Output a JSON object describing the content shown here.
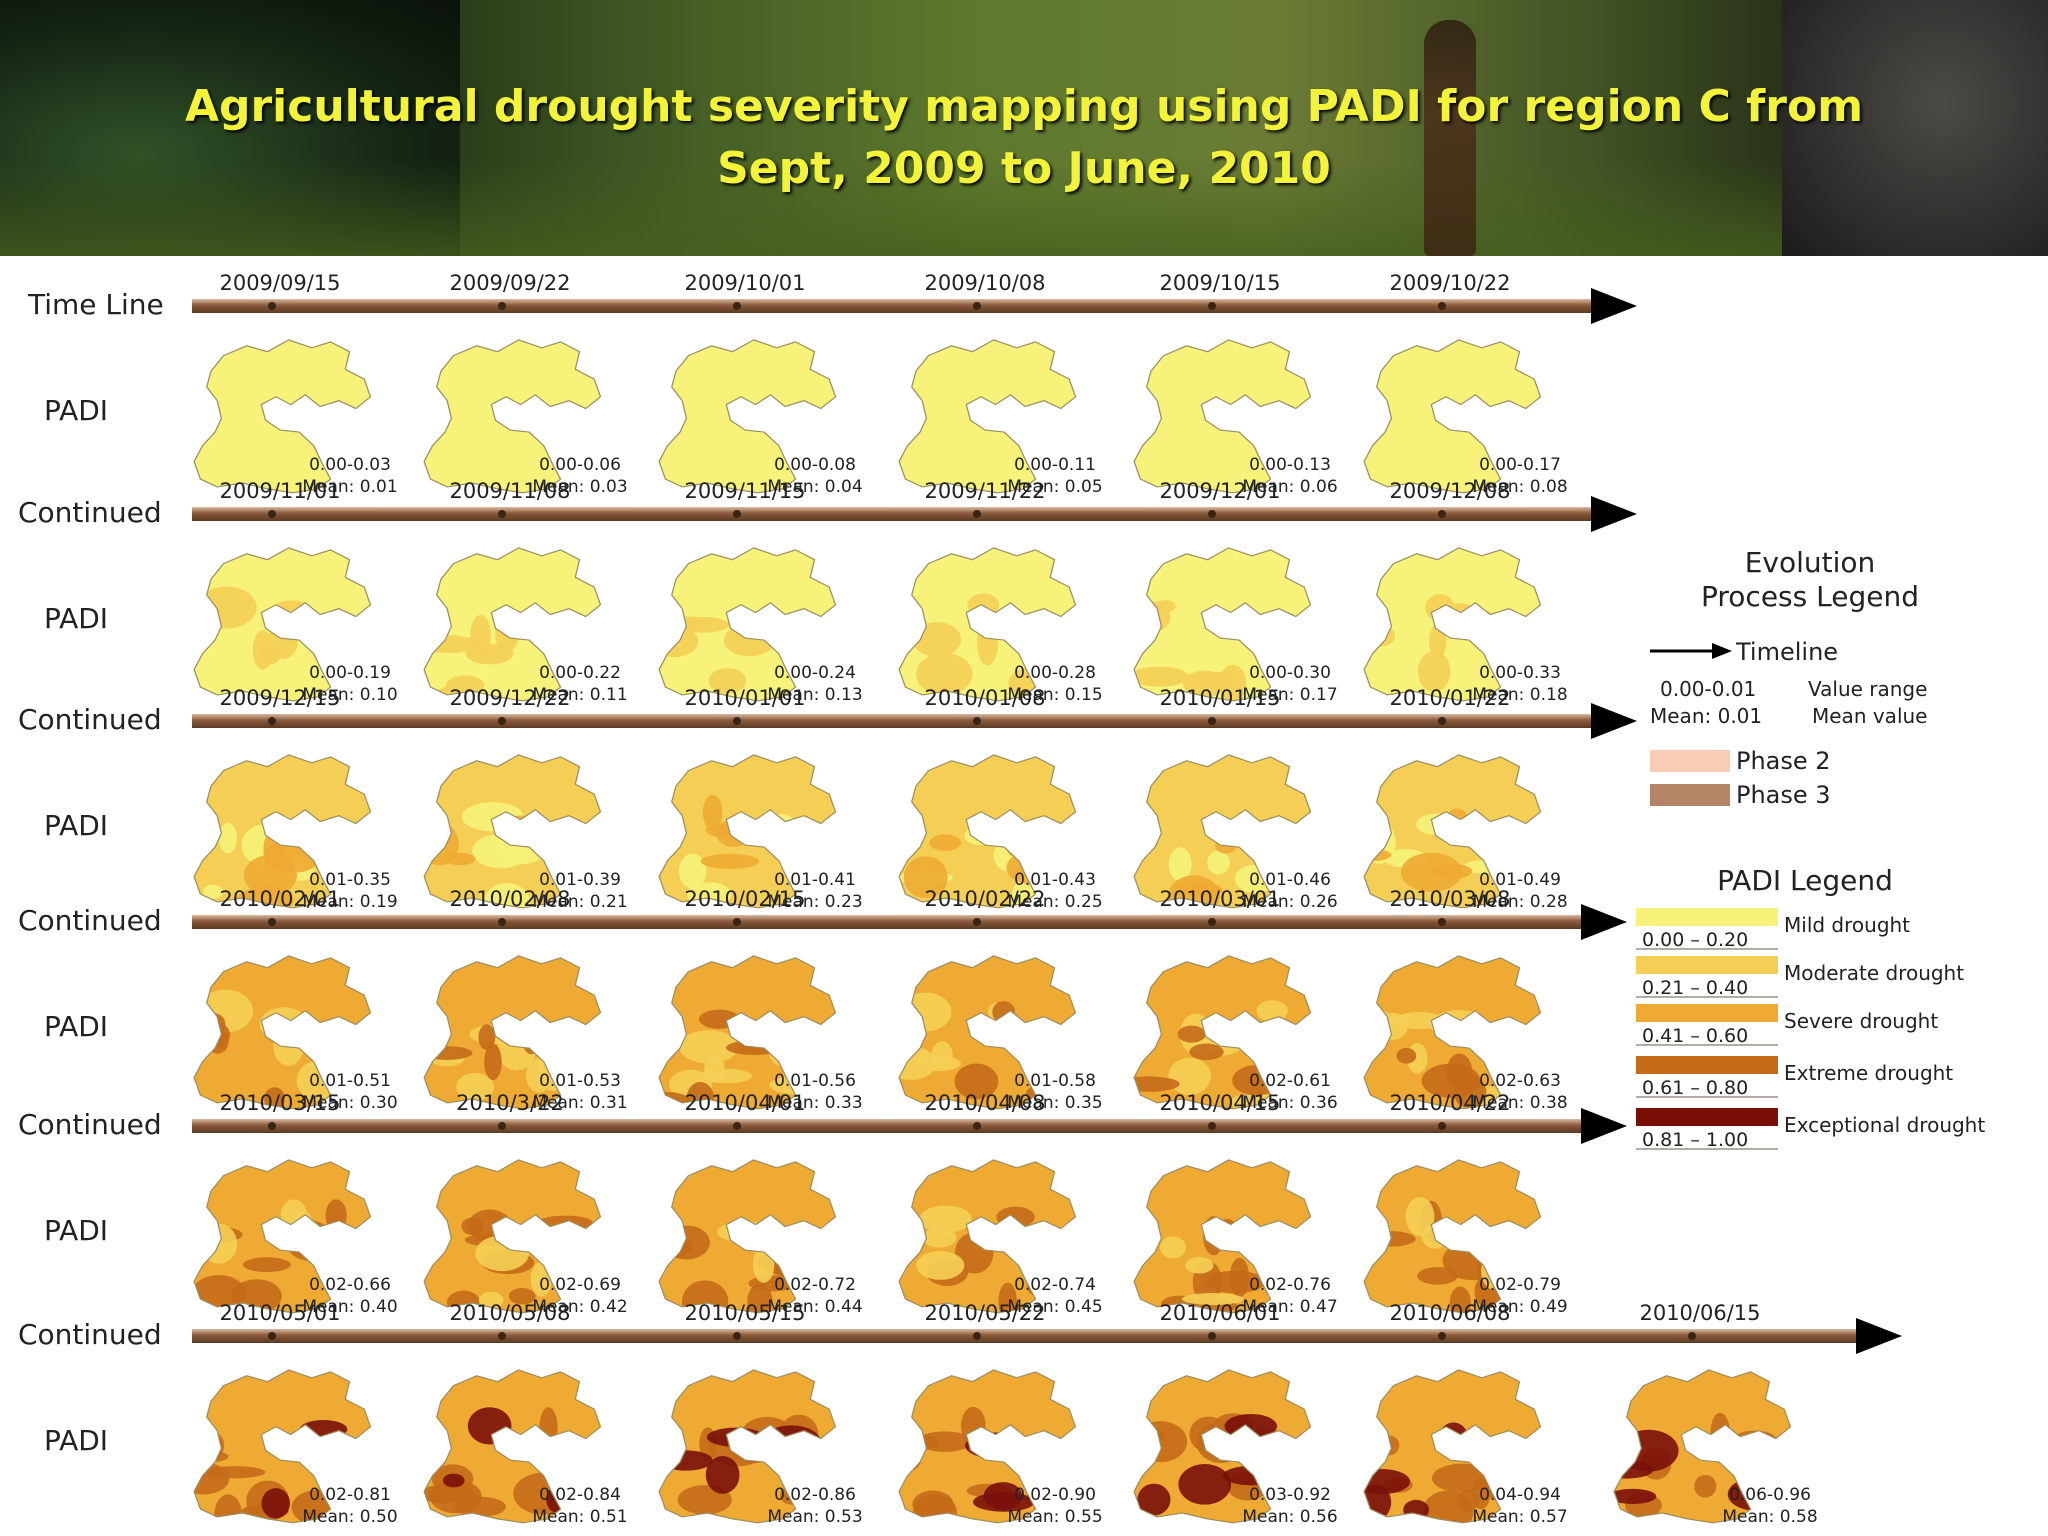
{
  "title": {
    "line1": "Agricultural drought severity mapping using PADI for region C from",
    "line2": "Sept, 2009 to June, 2010"
  },
  "labels": {
    "timeline": "Time Line",
    "continued": "Continued",
    "padi": "PADI"
  },
  "colors": {
    "title": "#f3f33a",
    "timeline_bar": "#8a5a3a",
    "mild": "#f6f27a",
    "moderate": "#f5cf55",
    "severe": "#eeaa33",
    "extreme": "#c46a18",
    "exceptional": "#7a0f0a",
    "phase2": "#f8cdb4",
    "phase3": "#b48466"
  },
  "maps": [
    {
      "date": "2009/09/15",
      "range": "0.00-0.03",
      "mean": "Mean: 0.01",
      "stage": 0
    },
    {
      "date": "2009/09/22",
      "range": "0.00-0.06",
      "mean": "Mean: 0.03",
      "stage": 0
    },
    {
      "date": "2009/10/01",
      "range": "0.00-0.08",
      "mean": "Mean: 0.04",
      "stage": 0
    },
    {
      "date": "2009/10/08",
      "range": "0.00-0.11",
      "mean": "Mean: 0.05",
      "stage": 0
    },
    {
      "date": "2009/10/15",
      "range": "0.00-0.13",
      "mean": "Mean: 0.06",
      "stage": 0
    },
    {
      "date": "2009/10/22",
      "range": "0.00-0.17",
      "mean": "Mean: 0.08",
      "stage": 0
    },
    {
      "date": "2009/11/01",
      "range": "0.00-0.19",
      "mean": "Mean: 0.10",
      "stage": 1
    },
    {
      "date": "2009/11/08",
      "range": "0.00-0.22",
      "mean": "Mean: 0.11",
      "stage": 1
    },
    {
      "date": "2009/11/15",
      "range": "0.00-0.24",
      "mean": "Mean: 0.13",
      "stage": 1
    },
    {
      "date": "2009/11/22",
      "range": "0.00-0.28",
      "mean": "Mean: 0.15",
      "stage": 1
    },
    {
      "date": "2009/12/01",
      "range": "0.00-0.30",
      "mean": "Mean: 0.17",
      "stage": 1
    },
    {
      "date": "2009/12/08",
      "range": "0.00-0.33",
      "mean": "Mean: 0.18",
      "stage": 1
    },
    {
      "date": "2009/12/15",
      "range": "0.01-0.35",
      "mean": "Mean: 0.19",
      "stage": 2
    },
    {
      "date": "2009/12/22",
      "range": "0.01-0.39",
      "mean": "Mean: 0.21",
      "stage": 2
    },
    {
      "date": "2010/01/01",
      "range": "0.01-0.41",
      "mean": "Mean: 0.23",
      "stage": 2
    },
    {
      "date": "2010/01/08",
      "range": "0.01-0.43",
      "mean": "Mean: 0.25",
      "stage": 2
    },
    {
      "date": "2010/01/15",
      "range": "0.01-0.46",
      "mean": "Mean: 0.26",
      "stage": 2
    },
    {
      "date": "2010/01/22",
      "range": "0.01-0.49",
      "mean": "Mean: 0.28",
      "stage": 2
    },
    {
      "date": "2010/02/01",
      "range": "0.01-0.51",
      "mean": "Mean: 0.30",
      "stage": 3
    },
    {
      "date": "2010/02/08",
      "range": "0.01-0.53",
      "mean": "Mean: 0.31",
      "stage": 3
    },
    {
      "date": "2010/02/15",
      "range": "0.01-0.56",
      "mean": "Mean: 0.33",
      "stage": 3
    },
    {
      "date": "2010/02/22",
      "range": "0.01-0.58",
      "mean": "Mean: 0.35",
      "stage": 3
    },
    {
      "date": "2010/03/01",
      "range": "0.02-0.61",
      "mean": "Mean: 0.36",
      "stage": 3
    },
    {
      "date": "2010/03/08",
      "range": "0.02-0.63",
      "mean": "Mean: 0.38",
      "stage": 3
    },
    {
      "date": "2010/03/15",
      "range": "0.02-0.66",
      "mean": "Mean: 0.40",
      "stage": 4
    },
    {
      "date": "2010/3/22",
      "range": "0.02-0.69",
      "mean": "Mean: 0.42",
      "stage": 4
    },
    {
      "date": "2010/04/01",
      "range": "0.02-0.72",
      "mean": "Mean: 0.44",
      "stage": 4
    },
    {
      "date": "2010/04/08",
      "range": "0.02-0.74",
      "mean": "Mean: 0.45",
      "stage": 4
    },
    {
      "date": "2010/04/15",
      "range": "0.02-0.76",
      "mean": "Mean: 0.47",
      "stage": 4
    },
    {
      "date": "2010/04/22",
      "range": "0.02-0.79",
      "mean": "Mean: 0.49",
      "stage": 4
    },
    {
      "date": "2010/05/01",
      "range": "0.02-0.81",
      "mean": "Mean: 0.50",
      "stage": 5
    },
    {
      "date": "2010/05/08",
      "range": "0.02-0.84",
      "mean": "Mean: 0.51",
      "stage": 5
    },
    {
      "date": "2010/05/15",
      "range": "0.02-0.86",
      "mean": "Mean: 0.53",
      "stage": 5
    },
    {
      "date": "2010/05/22",
      "range": "0.02-0.90",
      "mean": "Mean: 0.55",
      "stage": 5
    },
    {
      "date": "2010/06/01",
      "range": "0.03-0.92",
      "mean": "Mean: 0.56",
      "stage": 5
    },
    {
      "date": "2010/06/08",
      "range": "0.04-0.94",
      "mean": "Mean: 0.57",
      "stage": 5
    },
    {
      "date": "2010/06/15",
      "range": "0.06-0.96",
      "mean": "Mean: 0.58",
      "stage": 5
    }
  ],
  "evolution_legend": {
    "title_line1": "Evolution",
    "title_line2": "Process Legend",
    "timeline": "Timeline",
    "sample_range": "0.00-0.01",
    "range_desc": "Value range",
    "sample_mean": "Mean: 0.01",
    "mean_desc": "Mean value",
    "phase2": "Phase 2",
    "phase3": "Phase 3"
  },
  "padi_legend": {
    "title": "PADI Legend",
    "classes": [
      {
        "range": "0.00 – 0.20",
        "label": "Mild drought",
        "color": "#f6f27a"
      },
      {
        "range": "0.21 – 0.40",
        "label": "Moderate drought",
        "color": "#f5cf55"
      },
      {
        "range": "0.41 – 0.60",
        "label": "Severe drought",
        "color": "#eeaa33"
      },
      {
        "range": "0.61 – 0.80",
        "label": "Extreme drought",
        "color": "#c46a18"
      },
      {
        "range": "0.81 – 1.00",
        "label": "Exceptional drought",
        "color": "#7a0f0a"
      }
    ]
  }
}
